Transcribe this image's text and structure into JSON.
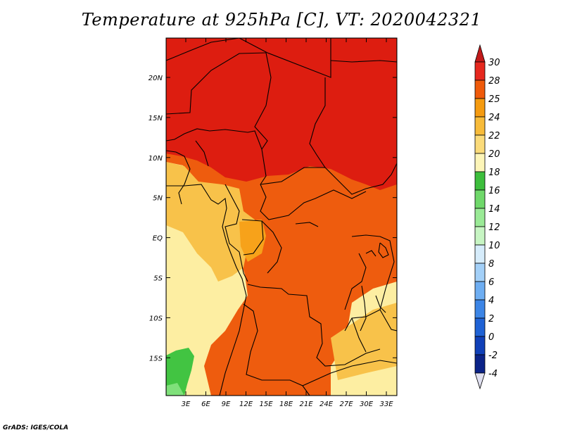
{
  "title": "Temperature at 925hPa [C], VT: 2020042321",
  "credit": "GrADS: IGES/COLA",
  "lat_ticks": [
    "20N",
    "15N",
    "10N",
    "5N",
    "EQ",
    "5S",
    "10S",
    "15S"
  ],
  "lon_ticks": [
    "3E",
    "6E",
    "9E",
    "12E",
    "15E",
    "18E",
    "21E",
    "24E",
    "27E",
    "30E",
    "33E"
  ],
  "colorbar": {
    "labels": [
      "30",
      "28",
      "25",
      "24",
      "22",
      "20",
      "18",
      "16",
      "14",
      "12",
      "10",
      "8",
      "6",
      "4",
      "2",
      "0",
      "-2",
      "-4"
    ],
    "colors": [
      "#e6281e",
      "#ef5a0a",
      "#f59b10",
      "#f7bb3a",
      "#fbdb7a",
      "#fdf5b8",
      "#3dbe3c",
      "#6fd86a",
      "#9aea96",
      "#c7f5c3",
      "#d6ecfb",
      "#a3d0f8",
      "#6eaef2",
      "#3c85e6",
      "#1f62d5",
      "#1040b8",
      "#0b2388"
    ],
    "top_cap_color": "#c21a1a",
    "bottom_cap_color": "#e0e0f0"
  },
  "region_colors": {
    "hot": "#dd1d10",
    "warm": "#ee5c0e",
    "mid": "#f7a21a",
    "cool": "#f8c24a",
    "pale": "#fdeea2",
    "green": "#42c442"
  }
}
